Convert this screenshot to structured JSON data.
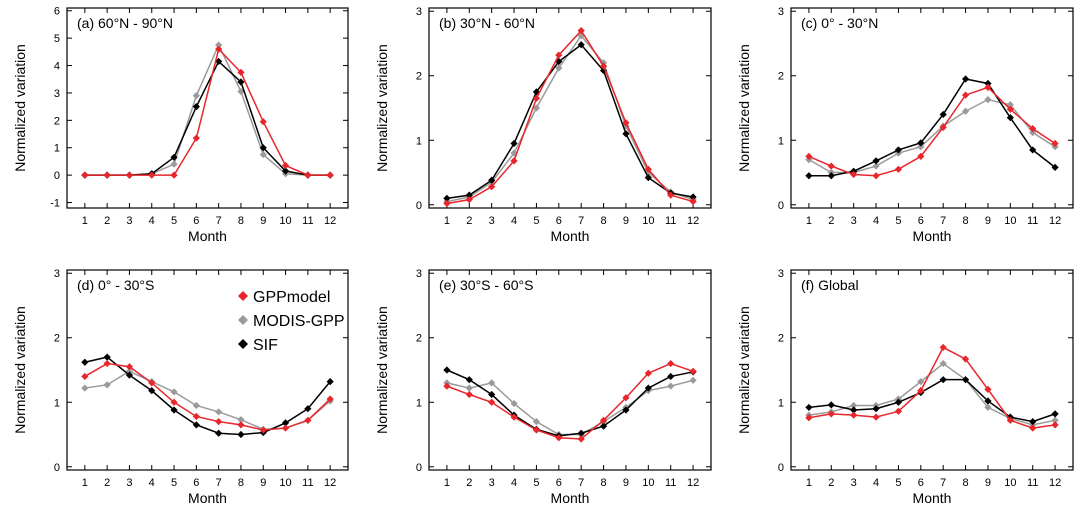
{
  "colors": {
    "GPPmodel": "#e8262b",
    "MODIS-GPP": "#9a9a9a",
    "SIF": "#000000"
  },
  "legend": [
    {
      "label": "GPPmodel",
      "color": "#e8262b"
    },
    {
      "label": "MODIS-GPP",
      "color": "#9a9a9a"
    },
    {
      "label": "SIF",
      "color": "#000000"
    }
  ],
  "chart_data": [
    {
      "type": "line",
      "title": "(a) 60°N - 90°N",
      "xlabel": "Month",
      "ylabel": "Normalized variation",
      "x": [
        1,
        2,
        3,
        4,
        5,
        6,
        7,
        8,
        9,
        10,
        11,
        12
      ],
      "ylim": [
        -1.2,
        6.1
      ],
      "yticks": [
        -1,
        0,
        1,
        2,
        3,
        4,
        5,
        6
      ],
      "series": [
        {
          "name": "MODIS-GPP",
          "values": [
            0,
            0,
            0,
            0.05,
            0.4,
            2.9,
            4.75,
            3.05,
            0.75,
            0.05,
            0,
            0
          ]
        },
        {
          "name": "SIF",
          "values": [
            0,
            0,
            0,
            0.05,
            0.65,
            2.5,
            4.15,
            3.4,
            1.0,
            0.15,
            0,
            0
          ]
        },
        {
          "name": "GPPmodel",
          "values": [
            0,
            0,
            0,
            0,
            0,
            1.35,
            4.6,
            3.75,
            1.95,
            0.35,
            0,
            0
          ]
        }
      ]
    },
    {
      "type": "line",
      "title": "(b) 30°N - 60°N",
      "xlabel": "Month",
      "ylabel": "Normalized variation",
      "x": [
        1,
        2,
        3,
        4,
        5,
        6,
        7,
        8,
        9,
        10,
        11,
        12
      ],
      "ylim": [
        -0.05,
        3.05
      ],
      "yticks": [
        0,
        1,
        2,
        3
      ],
      "series": [
        {
          "name": "MODIS-GPP",
          "values": [
            0.05,
            0.12,
            0.35,
            0.8,
            1.5,
            2.12,
            2.62,
            2.2,
            1.22,
            0.5,
            0.2,
            0.08
          ]
        },
        {
          "name": "SIF",
          "values": [
            0.1,
            0.15,
            0.38,
            0.95,
            1.75,
            2.22,
            2.48,
            2.08,
            1.1,
            0.42,
            0.18,
            0.12
          ]
        },
        {
          "name": "GPPmodel",
          "values": [
            0.02,
            0.08,
            0.28,
            0.68,
            1.65,
            2.32,
            2.7,
            2.15,
            1.27,
            0.55,
            0.15,
            0.05
          ]
        }
      ]
    },
    {
      "type": "line",
      "title": "(c) 0° - 30°N",
      "xlabel": "Month",
      "ylabel": "Normalized variation",
      "x": [
        1,
        2,
        3,
        4,
        5,
        6,
        7,
        8,
        9,
        10,
        11,
        12
      ],
      "ylim": [
        -0.05,
        3.05
      ],
      "yticks": [
        0,
        1,
        2,
        3
      ],
      "series": [
        {
          "name": "MODIS-GPP",
          "values": [
            0.7,
            0.5,
            0.5,
            0.6,
            0.8,
            0.9,
            1.22,
            1.45,
            1.63,
            1.55,
            1.12,
            0.9
          ]
        },
        {
          "name": "SIF",
          "values": [
            0.45,
            0.45,
            0.52,
            0.68,
            0.85,
            0.96,
            1.4,
            1.95,
            1.88,
            1.35,
            0.85,
            0.58
          ]
        },
        {
          "name": "GPPmodel",
          "values": [
            0.75,
            0.6,
            0.47,
            0.45,
            0.55,
            0.75,
            1.2,
            1.7,
            1.82,
            1.48,
            1.18,
            0.95
          ]
        }
      ]
    },
    {
      "type": "line",
      "title": "(d) 0° - 30°S",
      "xlabel": "Month",
      "ylabel": "Normalized variation",
      "x": [
        1,
        2,
        3,
        4,
        5,
        6,
        7,
        8,
        9,
        10,
        11,
        12
      ],
      "ylim": [
        -0.05,
        3.05
      ],
      "yticks": [
        0,
        1,
        2,
        3
      ],
      "series": [
        {
          "name": "MODIS-GPP",
          "values": [
            1.22,
            1.27,
            1.48,
            1.32,
            1.16,
            0.95,
            0.85,
            0.73,
            0.58,
            0.6,
            0.72,
            1.02
          ]
        },
        {
          "name": "SIF",
          "values": [
            1.62,
            1.7,
            1.42,
            1.18,
            0.88,
            0.65,
            0.52,
            0.5,
            0.53,
            0.68,
            0.9,
            1.32
          ]
        },
        {
          "name": "GPPmodel",
          "values": [
            1.4,
            1.6,
            1.55,
            1.3,
            1.0,
            0.78,
            0.7,
            0.65,
            0.57,
            0.6,
            0.72,
            1.05
          ]
        }
      ]
    },
    {
      "type": "line",
      "title": "(e) 30°S - 60°S",
      "xlabel": "Month",
      "ylabel": "Normalized variation",
      "x": [
        1,
        2,
        3,
        4,
        5,
        6,
        7,
        8,
        9,
        10,
        11,
        12
      ],
      "ylim": [
        -0.05,
        3.05
      ],
      "yticks": [
        0,
        1,
        2,
        3
      ],
      "series": [
        {
          "name": "MODIS-GPP",
          "values": [
            1.3,
            1.22,
            1.3,
            0.98,
            0.7,
            0.5,
            0.5,
            0.7,
            0.92,
            1.18,
            1.25,
            1.34
          ]
        },
        {
          "name": "SIF",
          "values": [
            1.5,
            1.35,
            1.12,
            0.8,
            0.58,
            0.48,
            0.52,
            0.63,
            0.88,
            1.22,
            1.4,
            1.47
          ]
        },
        {
          "name": "GPPmodel",
          "values": [
            1.25,
            1.12,
            1.0,
            0.77,
            0.57,
            0.45,
            0.43,
            0.72,
            1.07,
            1.45,
            1.6,
            1.48
          ]
        }
      ]
    },
    {
      "type": "line",
      "title": "(f) Global",
      "xlabel": "Month",
      "ylabel": "Normalized variation",
      "x": [
        1,
        2,
        3,
        4,
        5,
        6,
        7,
        8,
        9,
        10,
        11,
        12
      ],
      "ylim": [
        -0.05,
        3.05
      ],
      "yticks": [
        0,
        1,
        2,
        3
      ],
      "series": [
        {
          "name": "MODIS-GPP",
          "values": [
            0.8,
            0.85,
            0.95,
            0.95,
            1.05,
            1.32,
            1.6,
            1.35,
            0.92,
            0.75,
            0.65,
            0.72
          ]
        },
        {
          "name": "SIF",
          "values": [
            0.92,
            0.96,
            0.88,
            0.9,
            1.0,
            1.15,
            1.35,
            1.35,
            1.02,
            0.77,
            0.7,
            0.82
          ]
        },
        {
          "name": "GPPmodel",
          "values": [
            0.76,
            0.82,
            0.8,
            0.77,
            0.86,
            1.18,
            1.85,
            1.67,
            1.2,
            0.72,
            0.6,
            0.65
          ]
        }
      ]
    }
  ]
}
